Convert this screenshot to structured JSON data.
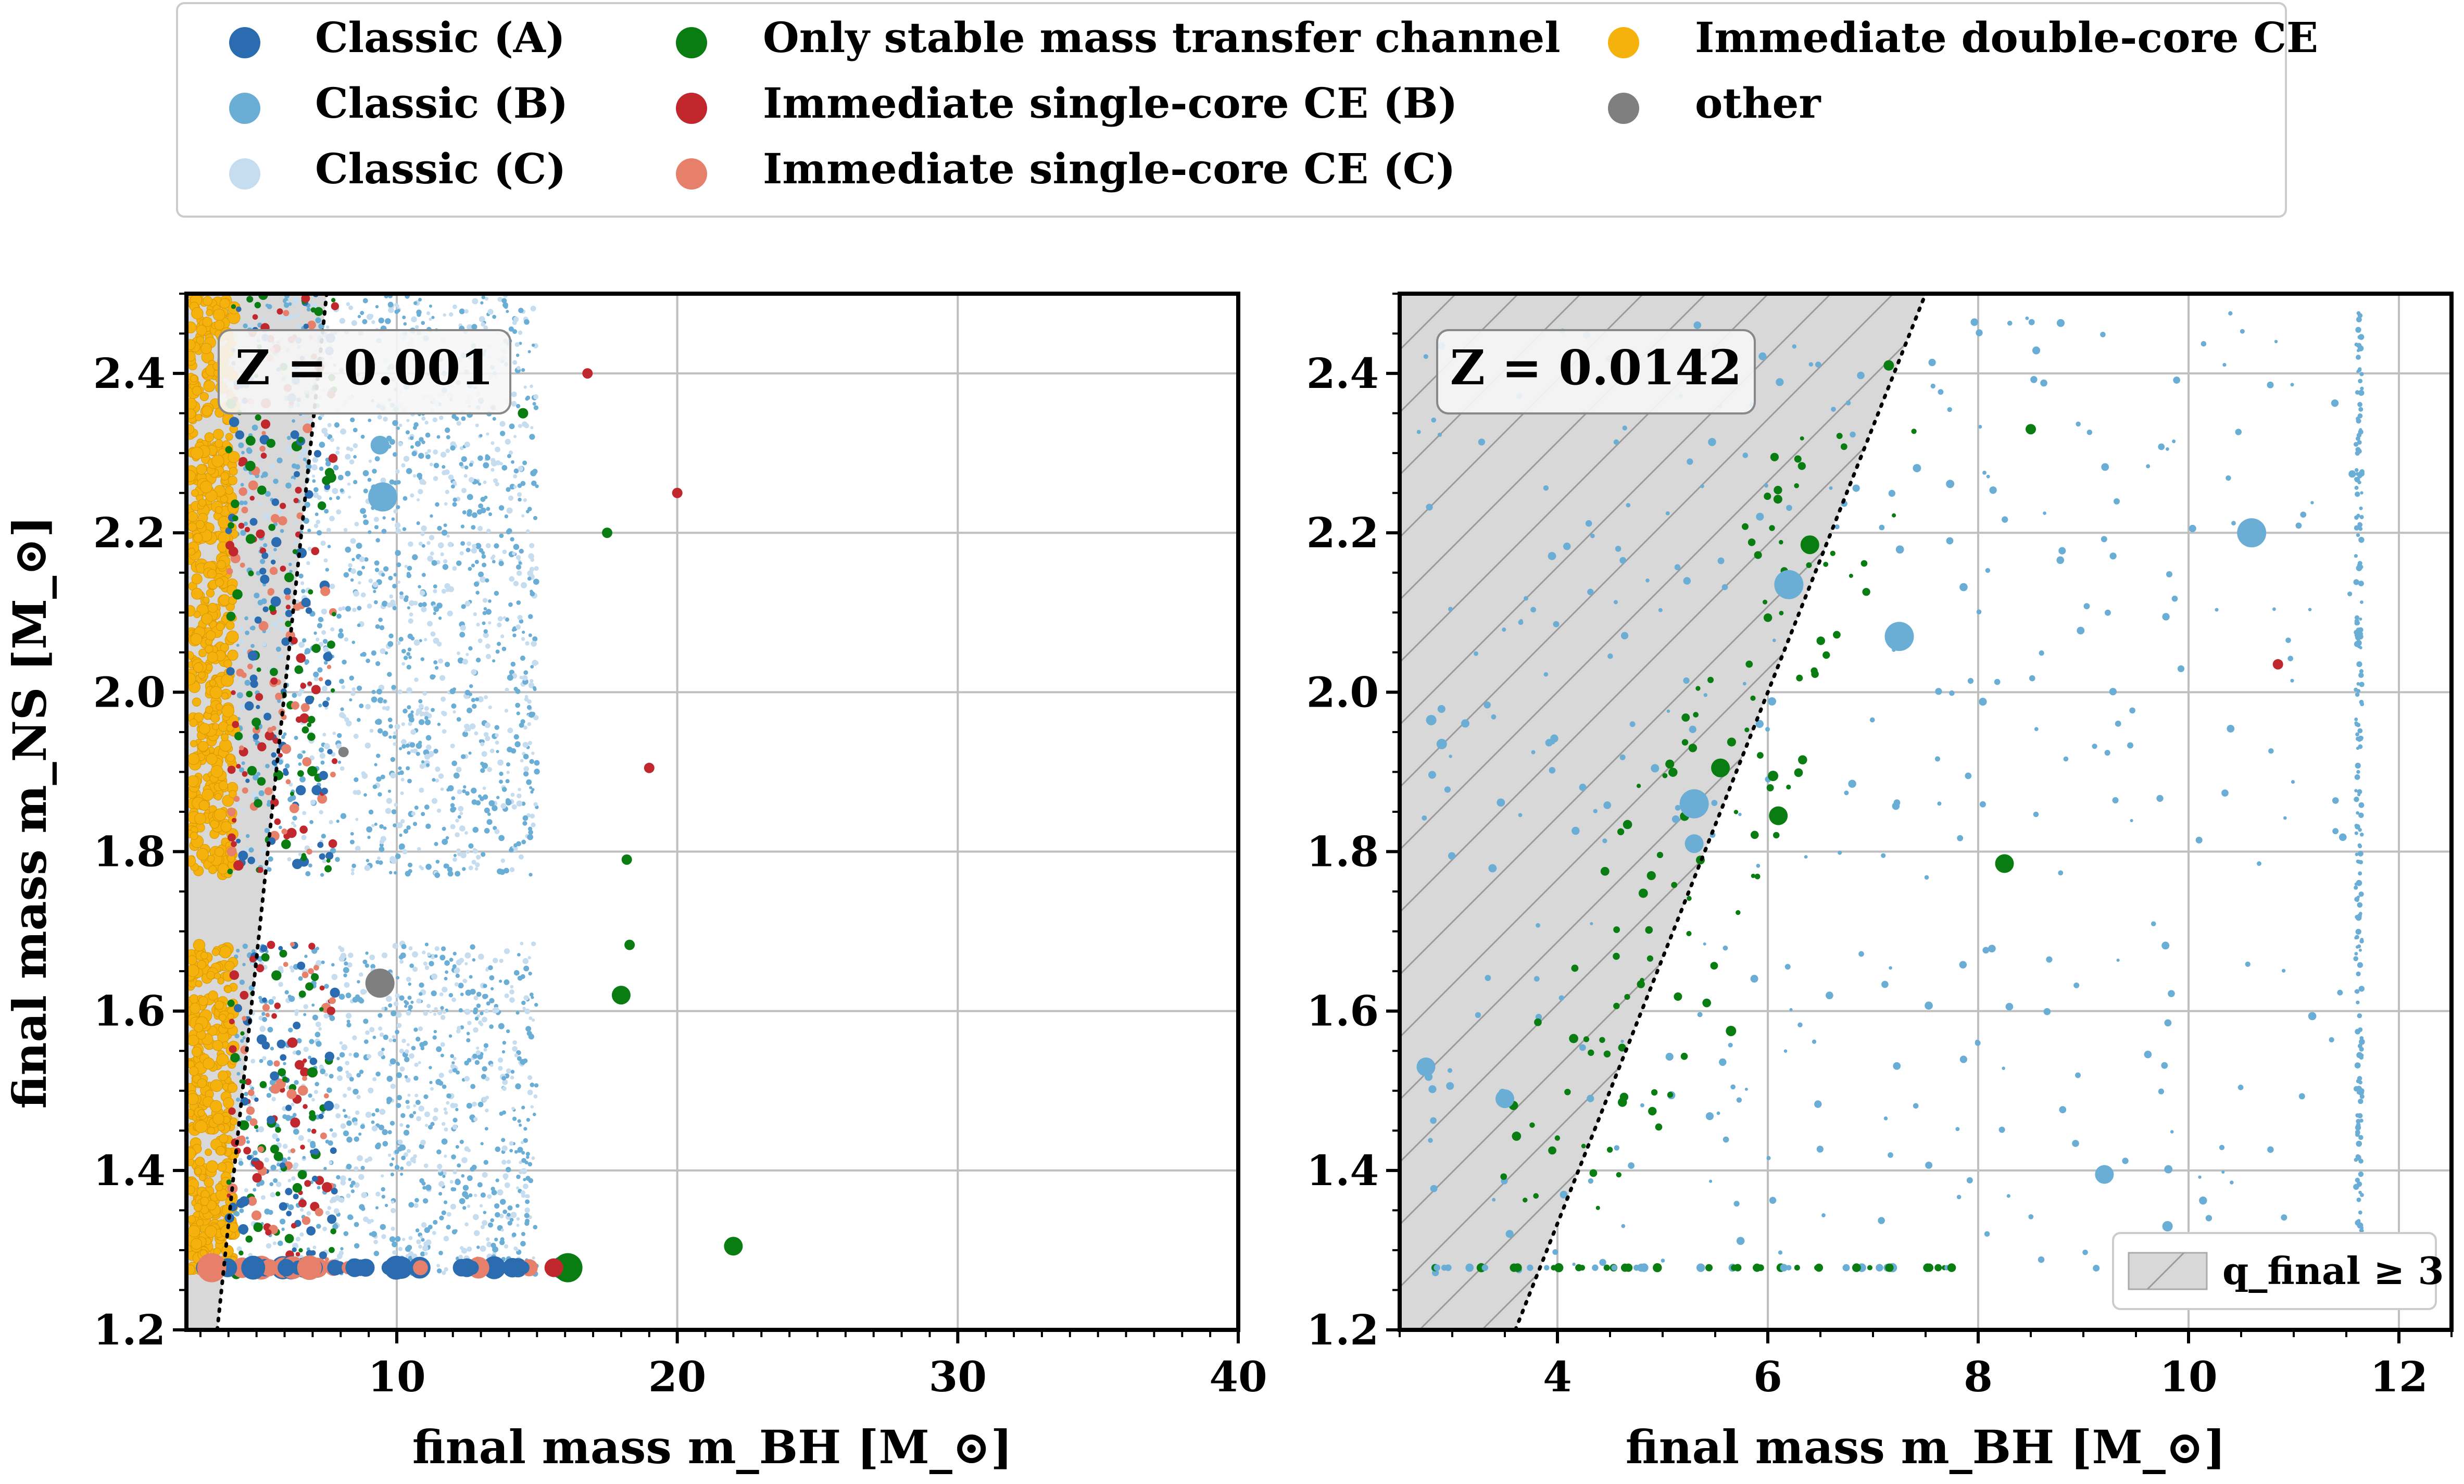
{
  "legend": {
    "entries": [
      {
        "label": "Classic (A)",
        "color": "#2b6cb0"
      },
      {
        "label": "Classic (B)",
        "color": "#6aaed6"
      },
      {
        "label": "Classic (C)",
        "color": "#c6dcef"
      },
      {
        "label": "Only stable mass transfer channel",
        "color": "#0a7d12"
      },
      {
        "label": "Immediate single-core CE (B)",
        "color": "#c0282e"
      },
      {
        "label": "Immediate single-core CE (C)",
        "color": "#e6806a"
      },
      {
        "label": "Immediate double-core CE",
        "color": "#f5b10c"
      },
      {
        "label": "other",
        "color": "#7f7f7f"
      }
    ]
  },
  "chart_data": [
    {
      "type": "scatter",
      "annotation": "Z = 0.001",
      "xlabel": "final mass m_BH [M_⊙]",
      "ylabel": "final mass m_NS [M_⊙]",
      "xlim": [
        2.5,
        40
      ],
      "ylim": [
        1.2,
        2.5
      ],
      "xticks": [
        "10",
        "20",
        "30",
        "40"
      ],
      "yticks": [
        "1.2",
        "1.4",
        "1.6",
        "1.8",
        "2.0",
        "2.2",
        "2.4"
      ],
      "grid": true,
      "shaded_region_label": "q_final ≥ 3",
      "ratio_line": 3,
      "highlighted_points": [
        {
          "x": 9.4,
          "y": 1.635,
          "series": "other",
          "size": "large"
        },
        {
          "x": 9.5,
          "y": 2.245,
          "series": "Classic (B)",
          "size": "large"
        },
        {
          "x": 9.4,
          "y": 2.31,
          "series": "Classic (B)",
          "size": "medium"
        },
        {
          "x": 20.0,
          "y": 2.25,
          "series": "Immediate single-core CE (B)",
          "size": "small"
        },
        {
          "x": 22.0,
          "y": 1.305,
          "series": "Only stable mass transfer channel",
          "size": "medium"
        },
        {
          "x": 18.0,
          "y": 1.62,
          "series": "Only stable mass transfer channel",
          "size": "medium"
        },
        {
          "x": 18.3,
          "y": 1.683,
          "series": "Only stable mass transfer channel",
          "size": "small"
        },
        {
          "x": 18.2,
          "y": 1.79,
          "series": "Only stable mass transfer channel",
          "size": "small"
        },
        {
          "x": 19.0,
          "y": 1.905,
          "series": "Immediate single-core CE (B)",
          "size": "small"
        },
        {
          "x": 17.5,
          "y": 2.2,
          "series": "Only stable mass transfer channel",
          "size": "small"
        },
        {
          "x": 16.1,
          "y": 1.278,
          "series": "Only stable mass transfer channel",
          "size": "large"
        },
        {
          "x": 15.6,
          "y": 1.278,
          "series": "Immediate single-core CE (B)",
          "size": "medium"
        },
        {
          "x": 3.4,
          "y": 1.278,
          "series": "Immediate single-core CE (C)",
          "size": "large"
        },
        {
          "x": 8.1,
          "y": 1.925,
          "series": "other",
          "size": "small"
        },
        {
          "x": 14.5,
          "y": 2.35,
          "series": "Only stable mass transfer channel",
          "size": "small"
        },
        {
          "x": 16.8,
          "y": 2.4,
          "series": "Immediate single-core CE (B)",
          "size": "small"
        },
        {
          "x": 12.5,
          "y": 1.278,
          "series": "Classic (A)",
          "size": "medium"
        },
        {
          "x": 8.5,
          "y": 1.278,
          "series": "Classic (A)",
          "size": "medium"
        }
      ]
    },
    {
      "type": "scatter",
      "annotation": "Z = 0.0142",
      "xlabel": "final mass m_BH [M_⊙]",
      "ylabel": "",
      "xlim": [
        2.5,
        12.5
      ],
      "ylim": [
        1.2,
        2.5
      ],
      "xticks": [
        "4",
        "6",
        "8",
        "10",
        "12"
      ],
      "yticks": [
        "1.2",
        "1.4",
        "1.6",
        "1.8",
        "2.0",
        "2.2",
        "2.4"
      ],
      "grid": true,
      "shaded_region_label": "q_final ≥ 3",
      "legend_label": "q_final ≥ 3",
      "legend_position": "lower right",
      "ratio_line": 3,
      "highlighted_points": [
        {
          "x": 10.6,
          "y": 2.2,
          "series": "Classic (B)",
          "size": "large"
        },
        {
          "x": 6.2,
          "y": 2.135,
          "series": "Classic (B)",
          "size": "large"
        },
        {
          "x": 7.25,
          "y": 2.07,
          "series": "Classic (B)",
          "size": "large"
        },
        {
          "x": 5.3,
          "y": 1.86,
          "series": "Classic (B)",
          "size": "large"
        },
        {
          "x": 5.3,
          "y": 1.81,
          "series": "Classic (B)",
          "size": "medium"
        },
        {
          "x": 9.2,
          "y": 1.395,
          "series": "Classic (B)",
          "size": "medium"
        },
        {
          "x": 9.8,
          "y": 1.33,
          "series": "Classic (B)",
          "size": "small"
        },
        {
          "x": 6.4,
          "y": 2.185,
          "series": "Only stable mass transfer channel",
          "size": "medium"
        },
        {
          "x": 5.55,
          "y": 1.905,
          "series": "Only stable mass transfer channel",
          "size": "medium"
        },
        {
          "x": 6.1,
          "y": 1.845,
          "series": "Only stable mass transfer channel",
          "size": "medium"
        },
        {
          "x": 6.05,
          "y": 1.895,
          "series": "Only stable mass transfer channel",
          "size": "small"
        },
        {
          "x": 8.25,
          "y": 1.785,
          "series": "Only stable mass transfer channel",
          "size": "medium"
        },
        {
          "x": 7.15,
          "y": 2.41,
          "series": "Only stable mass transfer channel",
          "size": "small"
        },
        {
          "x": 8.5,
          "y": 2.33,
          "series": "Only stable mass transfer channel",
          "size": "small"
        },
        {
          "x": 10.85,
          "y": 2.035,
          "series": "Immediate single-core CE (B)",
          "size": "small"
        },
        {
          "x": 5.65,
          "y": 1.575,
          "series": "Only stable mass transfer channel",
          "size": "small"
        },
        {
          "x": 2.8,
          "y": 1.965,
          "series": "Classic (B)",
          "size": "small"
        },
        {
          "x": 2.9,
          "y": 1.935,
          "series": "Classic (B)",
          "size": "small"
        },
        {
          "x": 2.75,
          "y": 1.53,
          "series": "Classic (B)",
          "size": "medium"
        },
        {
          "x": 3.5,
          "y": 1.49,
          "series": "Classic (B)",
          "size": "medium"
        }
      ]
    }
  ]
}
